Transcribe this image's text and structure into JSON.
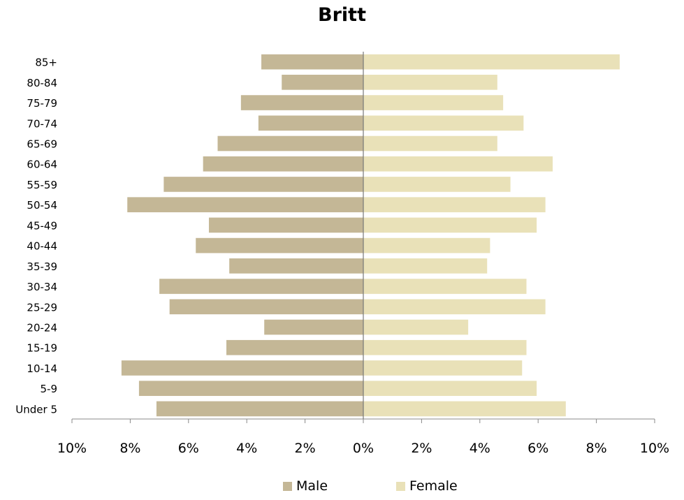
{
  "chart_data": {
    "type": "bar",
    "title": "Britt",
    "orientation": "horizontal-diverging",
    "categories": [
      "85+",
      "80-84",
      "75-79",
      "70-74",
      "65-69",
      "60-64",
      "55-59",
      "50-54",
      "45-49",
      "40-44",
      "35-39",
      "30-34",
      "25-29",
      "20-24",
      "15-19",
      "10-14",
      "5-9",
      "Under 5"
    ],
    "series": [
      {
        "name": "Male",
        "color": "#c4b796",
        "direction": "left",
        "values": [
          3.5,
          2.8,
          4.2,
          3.6,
          5.0,
          5.5,
          6.85,
          8.1,
          5.3,
          5.75,
          4.6,
          7.0,
          6.65,
          3.4,
          4.7,
          8.3,
          7.7,
          7.1
        ]
      },
      {
        "name": "Female",
        "color": "#e9e1b8",
        "direction": "right",
        "values": [
          8.8,
          4.6,
          4.8,
          5.5,
          4.6,
          6.5,
          5.05,
          6.25,
          5.95,
          4.35,
          4.25,
          5.6,
          6.25,
          3.6,
          5.6,
          5.45,
          5.95,
          6.95
        ]
      }
    ],
    "xlim": [
      -10,
      10
    ],
    "x_ticks": [
      "10%",
      "8%",
      "6%",
      "4%",
      "2%",
      "0%",
      "2%",
      "4%",
      "6%",
      "8%",
      "10%"
    ],
    "x_tick_values": [
      -10,
      -8,
      -6,
      -4,
      -2,
      0,
      2,
      4,
      6,
      8,
      10
    ],
    "legend_position": "bottom",
    "grid": false
  }
}
